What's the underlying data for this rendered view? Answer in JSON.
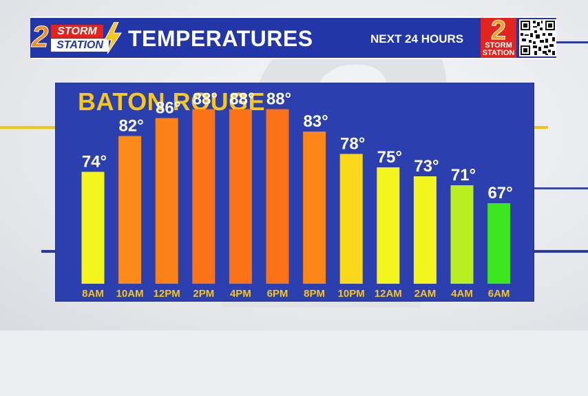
{
  "header": {
    "logo_storm": "STORM",
    "logo_station": "STATION",
    "logo_number": "2",
    "title": "TEMPERATURES",
    "subtitle": "NEXT 24 HOURS",
    "badge_number": "2",
    "badge_storm": "STORM",
    "badge_station": "STATION"
  },
  "colors": {
    "header_blue": "#2336a8",
    "panel_blue": "#2b3fae",
    "title_yellow": "#f7c61f",
    "brand_red": "#e3231d",
    "brand_orange": "#f28c1c"
  },
  "chart_data": {
    "type": "bar",
    "title": "BATON ROUGE",
    "categories": [
      "8AM",
      "10AM",
      "12PM",
      "2PM",
      "4PM",
      "6PM",
      "8PM",
      "10PM",
      "12AM",
      "2AM",
      "4AM",
      "6AM"
    ],
    "values": [
      74,
      82,
      86,
      88,
      88,
      88,
      83,
      78,
      75,
      73,
      71,
      67
    ],
    "value_labels": [
      "74°",
      "82°",
      "86°",
      "88°",
      "88°",
      "88°",
      "83°",
      "78°",
      "75°",
      "73°",
      "71°",
      "67°"
    ],
    "bar_colors": [
      "#f4f51d",
      "#fc8b1c",
      "#fc8118",
      "#fb7216",
      "#fb7216",
      "#fb7216",
      "#fc8518",
      "#fbd81c",
      "#f4f51d",
      "#f4f51d",
      "#b9ef22",
      "#3be61e"
    ],
    "unit": "°F",
    "grid": false,
    "legend": "none"
  }
}
